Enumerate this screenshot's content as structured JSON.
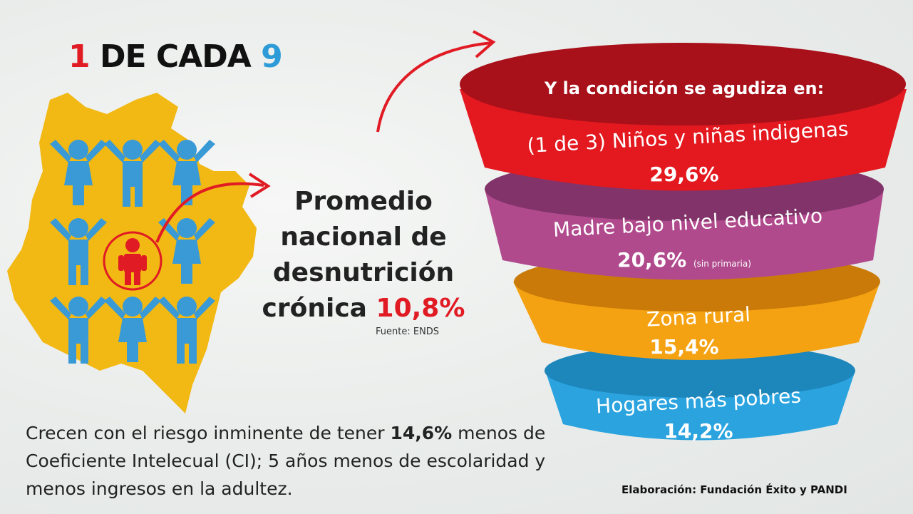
{
  "headline": {
    "one": "1",
    "middle": "DE CADA",
    "nine": "9"
  },
  "promedio": {
    "line1": "Promedio",
    "line2": "nacional de",
    "line3": "desnutrición",
    "line4": "crónica",
    "value": "10,8%"
  },
  "source": "Fuente: ENDS",
  "funnel": {
    "title": "Y la condición se agudiza en:",
    "levels": [
      {
        "label": "(1 de 3) Niños y niñas indigenas",
        "value": "29,6%",
        "color": "#e3191f",
        "note": ""
      },
      {
        "label": "Madre bajo nivel educativo",
        "value": "20,6%",
        "color": "#b04a8d",
        "note": "(sin primaria)"
      },
      {
        "label": "Zona rural",
        "value": "15,4%",
        "color": "#f5a212",
        "note": ""
      },
      {
        "label": "Hogares más pobres",
        "value": "14,2%",
        "color": "#2aa3df",
        "note": ""
      }
    ]
  },
  "bottom": {
    "part1": "Crecen con el riesgo inminente de tener ",
    "bold": "14,6%",
    "part2": " menos de Coeficiente Intelecual (CI); 5 años menos de escolaridad y menos ingresos en la adultez."
  },
  "credit": "Elaboración:  Fundación Éxito y PANDI",
  "colors": {
    "red": "#e01b24",
    "blue": "#2d9bd8",
    "yellow": "#f2b814",
    "figure_blue": "#3a9ad6"
  }
}
